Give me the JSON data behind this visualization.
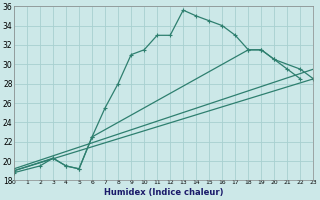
{
  "xlabel": "Humidex (Indice chaleur)",
  "xlim": [
    0,
    23
  ],
  "ylim": [
    18,
    36
  ],
  "xticks": [
    0,
    1,
    2,
    3,
    4,
    5,
    6,
    7,
    8,
    9,
    10,
    11,
    12,
    13,
    14,
    15,
    16,
    17,
    18,
    19,
    20,
    21,
    22,
    23
  ],
  "yticks": [
    18,
    20,
    22,
    24,
    26,
    28,
    30,
    32,
    34,
    36
  ],
  "bg_color": "#cce8e8",
  "line_color": "#2e7f6f",
  "grid_color": "#a8d0d0",
  "curve1_x": [
    0,
    2,
    3,
    4,
    5,
    6,
    7,
    8,
    9,
    10,
    11,
    12,
    13,
    14,
    15,
    16,
    17,
    18,
    19,
    20,
    21,
    22
  ],
  "curve1_y": [
    18.8,
    19.5,
    20.3,
    19.5,
    19.2,
    22.5,
    25.5,
    28.0,
    31.0,
    31.5,
    33.0,
    33.0,
    35.6,
    35.0,
    34.5,
    34.0,
    33.0,
    31.5,
    31.5,
    30.5,
    29.5,
    28.5
  ],
  "line1_x": [
    0,
    23
  ],
  "line1_y": [
    19.0,
    28.5
  ],
  "line2_x": [
    0,
    23
  ],
  "line2_y": [
    19.2,
    29.5
  ],
  "curve2_x": [
    0,
    3,
    4,
    5,
    6,
    18,
    19,
    20,
    22,
    23
  ],
  "curve2_y": [
    19.0,
    20.3,
    19.5,
    19.2,
    22.5,
    31.5,
    31.5,
    30.5,
    29.5,
    28.5
  ]
}
